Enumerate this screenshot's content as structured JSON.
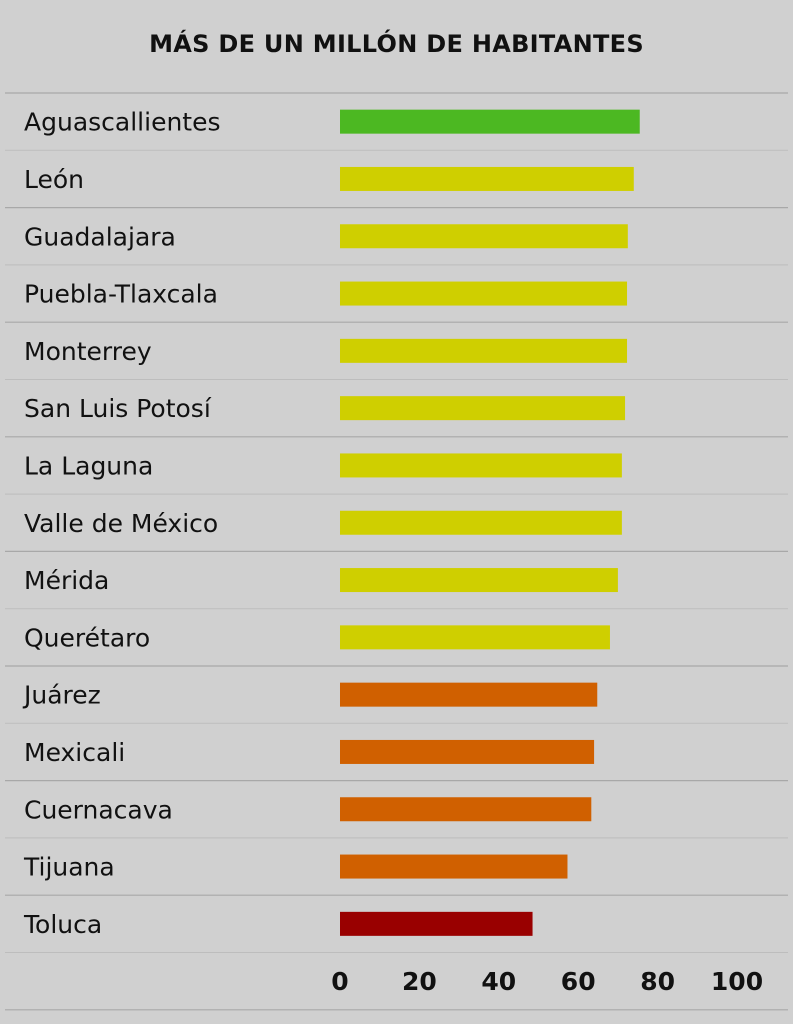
{
  "chart_data": {
    "type": "bar",
    "orientation": "horizontal",
    "title": "MÁS DE UN MILLÓN DE HABITANTES",
    "categories": [
      "Aguascallientes",
      "León",
      "Guadalajara",
      "Puebla-Tlaxcala",
      "Monterrey",
      "San Luis Potosí",
      "La Laguna",
      "Valle de México",
      "Mérida",
      "Querétaro",
      "Juárez",
      "Mexicali",
      "Cuernacava",
      "Tijuana",
      "Toluca"
    ],
    "values": [
      75.5,
      74,
      72.5,
      72.3,
      72.3,
      71.8,
      71,
      71,
      70,
      68,
      64.8,
      64,
      63.3,
      57.3,
      48.5
    ],
    "bar_colors": [
      "#4cb822",
      "#cfcf00",
      "#cfcf00",
      "#cfcf00",
      "#cfcf00",
      "#cfcf00",
      "#cfcf00",
      "#cfcf00",
      "#cfcf00",
      "#cfcf00",
      "#d06000",
      "#d06000",
      "#d06000",
      "#d06000",
      "#990000"
    ],
    "x_ticks": [
      0,
      20,
      40,
      60,
      80,
      100
    ],
    "xlim": [
      0,
      100
    ],
    "grid": "horizontal row separators",
    "background": "#d0d0d0"
  }
}
